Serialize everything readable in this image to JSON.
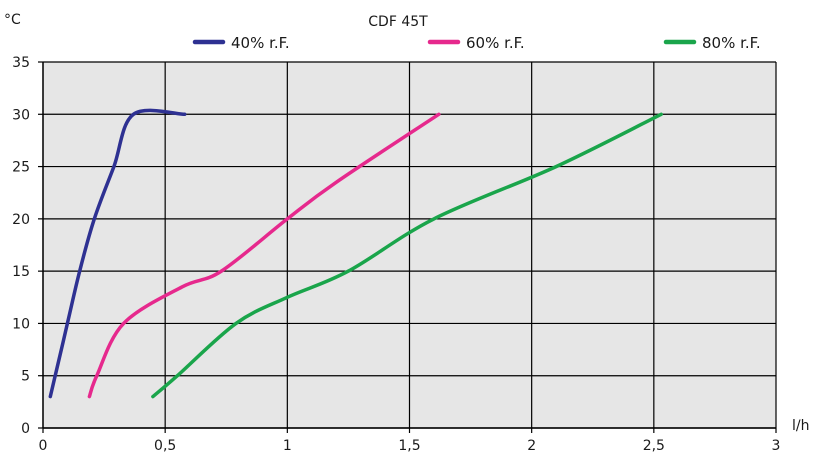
{
  "chart_data": {
    "type": "line",
    "title": "CDF 45T",
    "xlabel": "l/h",
    "ylabel": "°C",
    "xlim": [
      0,
      3
    ],
    "ylim": [
      0,
      35
    ],
    "x_ticks": [
      0,
      0.5,
      1,
      1.5,
      2,
      2.5,
      3
    ],
    "x_tick_labels": [
      "0",
      "0,5",
      "1",
      "1,5",
      "2",
      "2,5",
      "3"
    ],
    "y_ticks": [
      0,
      5,
      10,
      15,
      20,
      25,
      30,
      35
    ],
    "y_tick_labels": [
      "0",
      "5",
      "10",
      "15",
      "20",
      "25",
      "30",
      "35"
    ],
    "grid": true,
    "legend_position": "top",
    "series": [
      {
        "name": "40% r.F.",
        "color": "#2e3192",
        "points": [
          [
            0.03,
            3
          ],
          [
            0.05,
            5
          ],
          [
            0.1,
            10
          ],
          [
            0.15,
            15
          ],
          [
            0.21,
            20
          ],
          [
            0.29,
            25
          ],
          [
            0.37,
            30
          ],
          [
            0.58,
            30
          ]
        ]
      },
      {
        "name": "60% r.F.",
        "color": "#e6298d",
        "points": [
          [
            0.19,
            3
          ],
          [
            0.22,
            5
          ],
          [
            0.33,
            10
          ],
          [
            0.57,
            13.5
          ],
          [
            0.73,
            15
          ],
          [
            1.0,
            20
          ],
          [
            1.2,
            23.5
          ],
          [
            1.62,
            30
          ]
        ]
      },
      {
        "name": "80% r.F.",
        "color": "#1aa54b",
        "points": [
          [
            0.45,
            3
          ],
          [
            0.55,
            5
          ],
          [
            0.79,
            10
          ],
          [
            1.0,
            12.5
          ],
          [
            1.25,
            15
          ],
          [
            1.6,
            20
          ],
          [
            2.1,
            25
          ],
          [
            2.53,
            30
          ]
        ]
      }
    ]
  }
}
